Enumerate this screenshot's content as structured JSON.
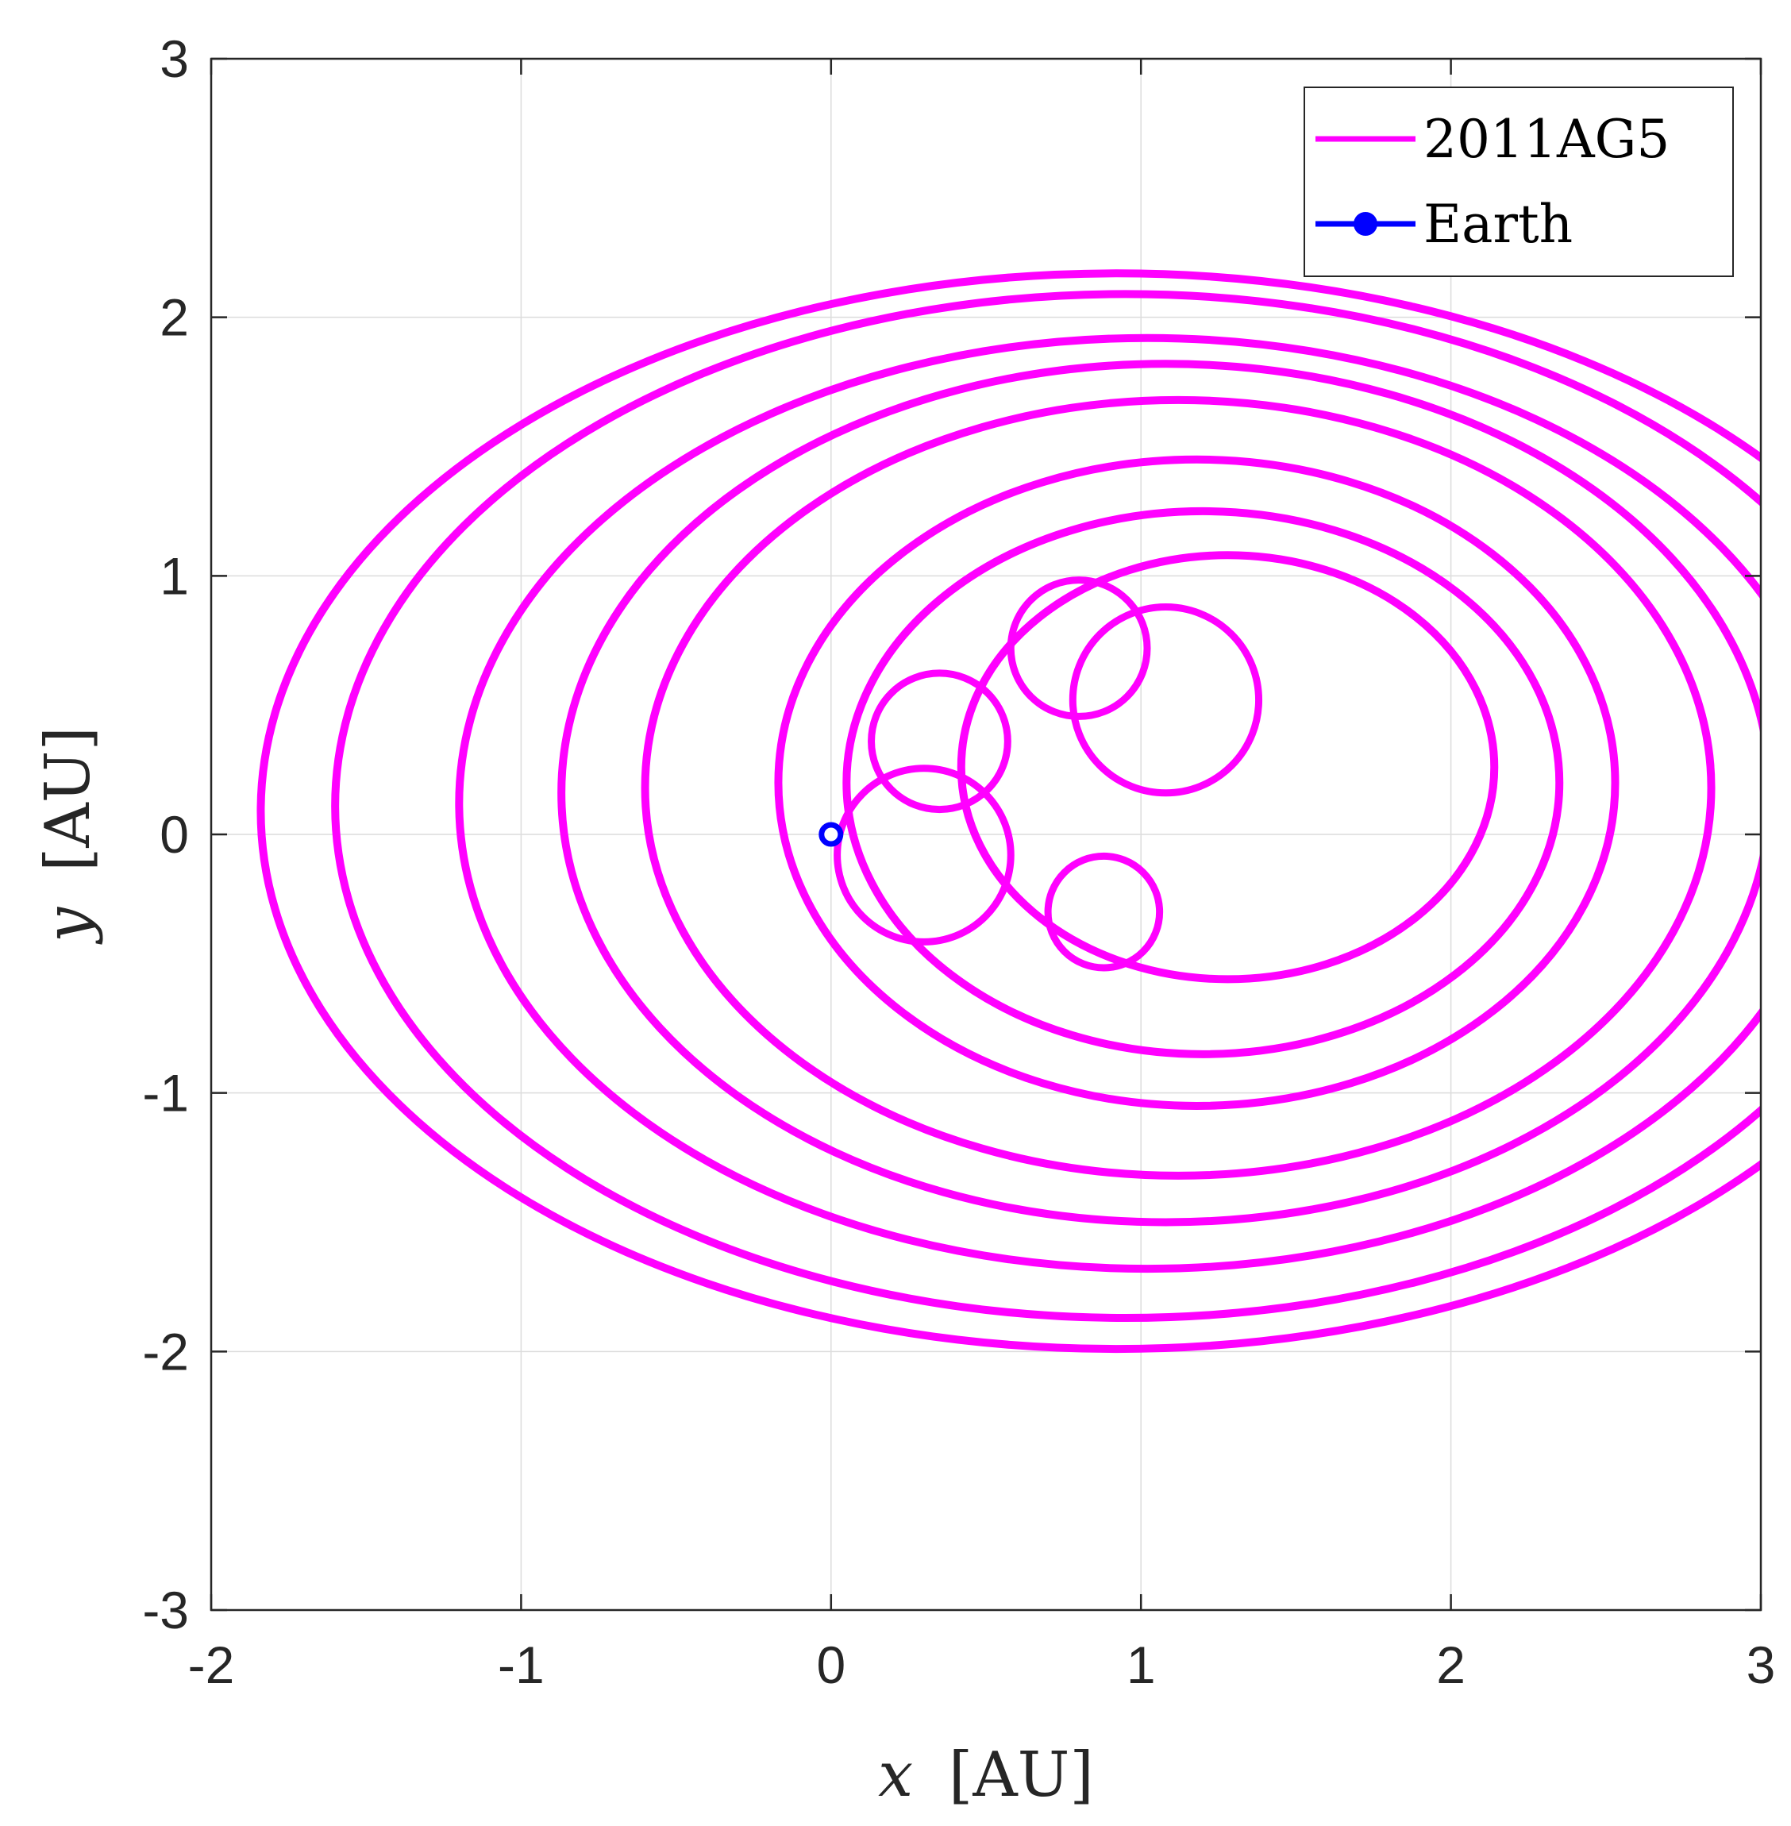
{
  "chart_data": {
    "type": "line",
    "title": "",
    "xlabel_var": "x",
    "xlabel_unit": "[AU]",
    "ylabel_var": "y",
    "ylabel_unit": "[AU]",
    "xlim": [
      -2,
      3
    ],
    "ylim": [
      -3,
      3
    ],
    "x_ticks": [
      -2,
      -1,
      0,
      1,
      2,
      3
    ],
    "y_ticks": [
      -3,
      -2,
      -1,
      0,
      1,
      2,
      3
    ],
    "x_tick_labels": [
      "-2",
      "-1",
      "0",
      "1",
      "2",
      "3"
    ],
    "y_tick_labels": [
      "-3",
      "-2",
      "-1",
      "0",
      "1",
      "2",
      "3"
    ],
    "grid": true,
    "legend_position": "top-right",
    "series": [
      {
        "name": "2011AG5",
        "color": "#ff00ff",
        "kind": "trajectory",
        "loops": [
          {
            "cx": 0.92,
            "cy": 0.09,
            "rx": 2.76,
            "ry": 2.08
          },
          {
            "cx": 0.95,
            "cy": 0.11,
            "rx": 2.55,
            "ry": 1.98
          },
          {
            "cx": 1.02,
            "cy": 0.12,
            "rx": 2.22,
            "ry": 1.8
          },
          {
            "cx": 1.08,
            "cy": 0.16,
            "rx": 1.95,
            "ry": 1.66
          },
          {
            "cx": 1.12,
            "cy": 0.18,
            "rx": 1.72,
            "ry": 1.5
          },
          {
            "cx": 1.18,
            "cy": 0.2,
            "rx": 1.35,
            "ry": 1.25
          },
          {
            "cx": 1.2,
            "cy": 0.2,
            "rx": 1.15,
            "ry": 1.05
          },
          {
            "cx": 1.28,
            "cy": 0.26,
            "rx": 0.86,
            "ry": 0.82
          }
        ],
        "curls": [
          {
            "cx": 0.8,
            "cy": 0.72,
            "r": 0.22
          },
          {
            "cx": 1.08,
            "cy": 0.52,
            "r": 0.3
          },
          {
            "cx": 0.88,
            "cy": -0.3,
            "r": 0.18
          },
          {
            "cx": 0.35,
            "cy": 0.36,
            "r": 0.22
          },
          {
            "cx": 0.3,
            "cy": -0.08,
            "r": 0.28
          }
        ]
      },
      {
        "name": "Earth",
        "color": "#0000ff",
        "kind": "point",
        "x": [
          0
        ],
        "y": [
          0
        ]
      }
    ]
  }
}
